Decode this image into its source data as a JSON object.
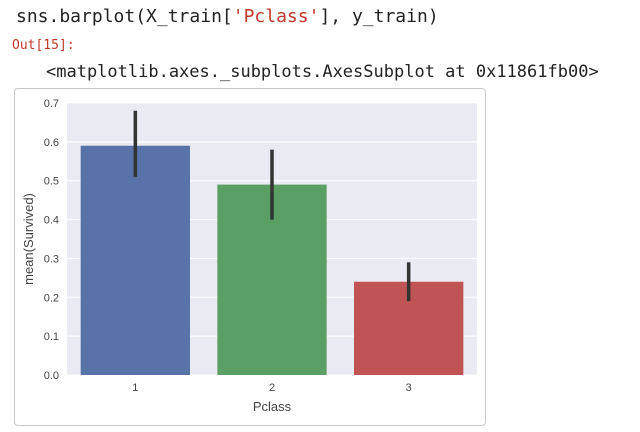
{
  "cell": {
    "code_prefix": "sns.barplot(X_train[",
    "code_string": "'Pclass'",
    "code_suffix": "], y_train)",
    "out_prompt": "Out[15]:",
    "repr": "<matplotlib.axes._subplots.AxesSubplot at 0x11861fb00>"
  },
  "colors": {
    "plot_bg": "#eaeaf2",
    "grid": "#ffffff",
    "error_bar": "#333333"
  },
  "chart_data": {
    "type": "bar",
    "title": "",
    "xlabel": "Pclass",
    "ylabel": "mean(Survived)",
    "categories": [
      "1",
      "2",
      "3"
    ],
    "values": [
      0.59,
      0.49,
      0.24
    ],
    "errors_low": [
      0.51,
      0.4,
      0.19
    ],
    "errors_high": [
      0.68,
      0.58,
      0.29
    ],
    "bar_colors": [
      "#5873a8",
      "#5aa064",
      "#c05454"
    ],
    "ylim": [
      0.0,
      0.7
    ],
    "yticks": [
      "0.0",
      "0.1",
      "0.2",
      "0.3",
      "0.4",
      "0.5",
      "0.6",
      "0.7"
    ],
    "grid": true
  }
}
